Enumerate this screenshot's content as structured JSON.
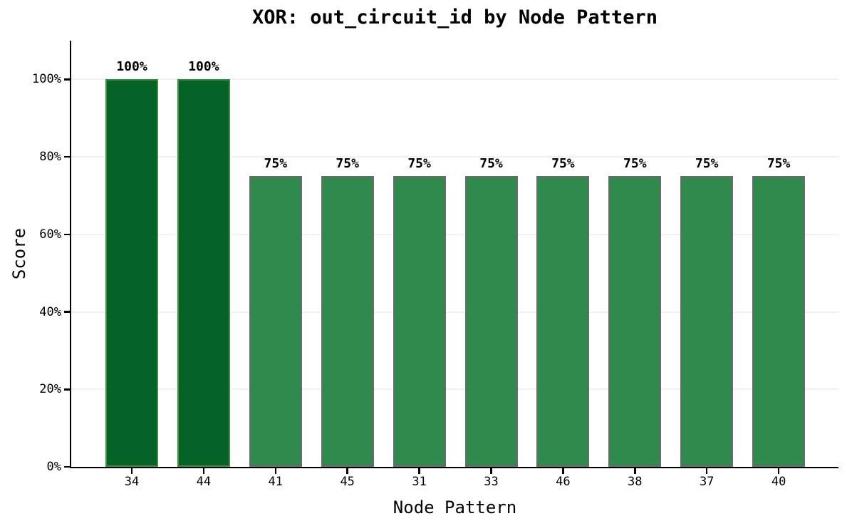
{
  "chart_data": {
    "type": "bar",
    "title": "XOR: out_circuit_id by Node Pattern",
    "xlabel": "Node Pattern",
    "ylabel": "Score",
    "categories": [
      "34",
      "44",
      "41",
      "45",
      "31",
      "33",
      "46",
      "38",
      "37",
      "40"
    ],
    "values": [
      100,
      100,
      75,
      75,
      75,
      75,
      75,
      75,
      75,
      75
    ],
    "value_labels": [
      "100%",
      "100%",
      "75%",
      "75%",
      "75%",
      "75%",
      "75%",
      "75%",
      "75%",
      "75%"
    ],
    "yticks": [
      0,
      20,
      40,
      60,
      80,
      100
    ],
    "ytick_labels": [
      "0%",
      "20%",
      "40%",
      "60%",
      "80%",
      "100%"
    ],
    "ylim": [
      0,
      110
    ],
    "grid": "horizontal",
    "legend": "none",
    "colors": {
      "highlight_fill": "#066327",
      "highlight_edge": "#3f8c3f",
      "bar_fill": "#2e8b4d",
      "bar_edge": "#6a6a6a",
      "gridline": "#f0f0f0",
      "axis": "#000000",
      "background": "#ffffff"
    },
    "highlight_value": 100
  }
}
